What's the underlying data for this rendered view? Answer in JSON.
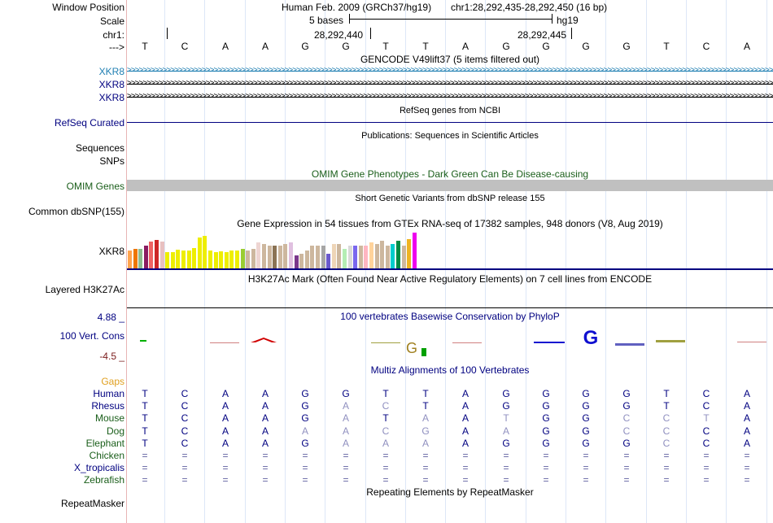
{
  "labels": {
    "window_position": "Window Position",
    "scale": "Scale",
    "chr": "chr1:",
    "arrow": "--->",
    "xkr8_1": "XKR8",
    "xkr8_2": "XKR8",
    "xkr8_3": "XKR8",
    "refseq": "RefSeq Curated",
    "sequences": "Sequences",
    "snps": "SNPs",
    "omim": "OMIM Genes",
    "dbsnp": "Common dbSNP(155)",
    "gtex": "XKR8",
    "h3k27ac": "Layered H3K27Ac",
    "cons_max": "4.88 _",
    "cons_name": "100 Vert. Cons",
    "cons_min": "-4.5 _",
    "gaps": "Gaps",
    "species": [
      "Human",
      "Rhesus",
      "Mouse",
      "Dog",
      "Elephant",
      "Chicken",
      "X_tropicalis",
      "Zebrafish"
    ],
    "repeatmasker": "RepeatMasker"
  },
  "colors": {
    "xkr8": "#1f7fb2",
    "navy": "#000080",
    "dark_green": "#1a5e1a",
    "maroon": "#7a1a1a",
    "gaps": "#e0a020",
    "omim_bar": "#c0c0c0",
    "rhesus_mismatch": "#8080c0"
  },
  "header": {
    "assembly": "Human Feb. 2009 (GRCh37/hg19)",
    "position": "chr1:28,292,435-28,292,450 (16 bp)",
    "scale_bases": "5 bases",
    "scale_db": "hg19",
    "coord_1": "28,292,440",
    "coord_2": "28,292,445"
  },
  "sequence": [
    "T",
    "C",
    "A",
    "A",
    "G",
    "G",
    "T",
    "T",
    "A",
    "G",
    "G",
    "G",
    "G",
    "T",
    "C",
    "A"
  ],
  "tracks": {
    "gencode_title": "GENCODE V49lift37 (5 items filtered out)",
    "refseq_title": "RefSeq genes from NCBI",
    "pubs_title": "Publications: Sequences in Scientific Articles",
    "omim_title": "OMIM Gene Phenotypes - Dark Green Can Be Disease-causing",
    "dbsnp_title": "Short Genetic Variants from dbSNP release 155",
    "gtex_title": "Gene Expression in 54 tissues from GTEx RNA-seq of 17382 samples, 948 donors (V8, Aug 2019)",
    "h3k27ac_title": "H3K27Ac Mark (Often Found Near Active Regulatory Elements) on 7 cell lines from ENCODE",
    "cons_title": "100 vertebrates Basewise Conservation by PhyloP",
    "multiz_title": "Multiz Alignments of 100 Vertebrates",
    "repeat_title": "Repeating Elements by RepeatMasker"
  },
  "alignment": {
    "Human": [
      "T",
      "C",
      "A",
      "A",
      "G",
      "G",
      "T",
      "T",
      "A",
      "G",
      "G",
      "G",
      "G",
      "T",
      "C",
      "A"
    ],
    "Rhesus": [
      "T",
      "C",
      "A",
      "A",
      "G",
      "A",
      "C",
      "T",
      "A",
      "G",
      "G",
      "G",
      "G",
      "T",
      "C",
      "A"
    ],
    "Mouse": [
      "T",
      "C",
      "A",
      "A",
      "G",
      "A",
      "T",
      "A",
      "A",
      "T",
      "G",
      "G",
      "C",
      "C",
      "T",
      "A"
    ],
    "Dog": [
      "T",
      "C",
      "A",
      "A",
      "A",
      "A",
      "C",
      "G",
      "A",
      "A",
      "G",
      "G",
      "C",
      "C",
      "C",
      "A"
    ],
    "Elephant": [
      "T",
      "C",
      "A",
      "A",
      "G",
      "A",
      "A",
      "A",
      "A",
      "G",
      "G",
      "G",
      "G",
      "C",
      "C",
      "A"
    ],
    "Chicken": [
      "=",
      "=",
      "=",
      "=",
      "=",
      "=",
      "=",
      "=",
      "=",
      "=",
      "=",
      "=",
      "=",
      "=",
      "=",
      "="
    ],
    "X_tropicalis": [
      "=",
      "=",
      "=",
      "=",
      "=",
      "=",
      "=",
      "=",
      "=",
      "=",
      "=",
      "=",
      "=",
      "=",
      "=",
      "="
    ],
    "Zebrafish": [
      "=",
      "=",
      "=",
      "=",
      "=",
      "=",
      "=",
      "=",
      "=",
      "=",
      "=",
      "=",
      "=",
      "=",
      "=",
      "="
    ]
  },
  "gtex_colors": [
    "#ffa54f",
    "#ee7600",
    "#8fbc8f",
    "#8b1c62",
    "#ee6363",
    "#cd2626",
    "#e8c0c0",
    "#eeee00",
    "#eeee00",
    "#eeee00",
    "#eeee00",
    "#eeee00",
    "#eeee00",
    "#eeee00",
    "#eeee00",
    "#eeee00",
    "#eeee00",
    "#eeee00",
    "#eeee00",
    "#eeee00",
    "#eeee00",
    "#9acd32",
    "#cdb79e",
    "#cdb79e",
    "#eed5d2",
    "#cdb79e",
    "#cdb79e",
    "#8b7355",
    "#cdb79e",
    "#cdb79e",
    "#e0c0e0",
    "#7a378b",
    "#cdb79e",
    "#cdb79e",
    "#cdb79e",
    "#cdb79e",
    "#a6a6a6",
    "#6a5acd",
    "#eed5b7",
    "#cdb79e",
    "#b4eeb4",
    "#d9d9d9",
    "#7a67ee",
    "#cdb79e",
    "#ffb6c1",
    "#ffd39b",
    "#cdb79e",
    "#cdb79e",
    "#cdb79e",
    "#00cdcd",
    "#008b45",
    "#cdb79e",
    "#eeb422",
    "#ee00ee"
  ],
  "gtex_values": [
    22,
    24,
    24,
    28,
    33,
    35,
    33,
    20,
    20,
    23,
    22,
    22,
    25,
    38,
    40,
    22,
    20,
    21,
    20,
    22,
    22,
    24,
    22,
    24,
    32,
    30,
    28,
    28,
    28,
    30,
    32,
    16,
    18,
    22,
    28,
    28,
    28,
    18,
    30,
    30,
    24,
    28,
    28,
    28,
    28,
    32,
    30,
    34,
    28,
    30,
    34,
    28,
    36,
    44
  ]
}
